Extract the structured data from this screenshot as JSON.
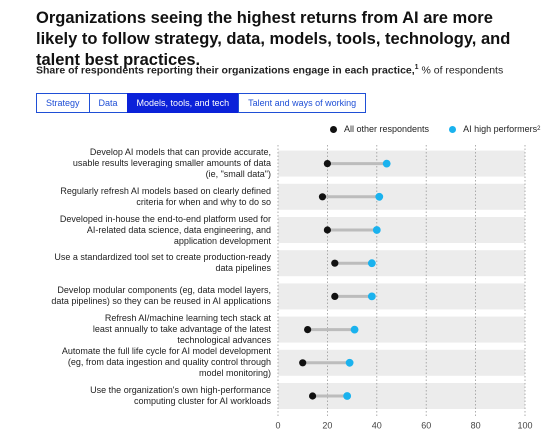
{
  "title": "Organizations seeing the highest returns from AI are more likely to follow strategy, data, models, tools, technology, and talent best practices.",
  "subtitle_bold": "Share of respondents reporting their organizations engage in each practice,",
  "subtitle_sup": "1",
  "subtitle_rest": " % of respondents",
  "tabs": [
    {
      "label": "Strategy",
      "active": false
    },
    {
      "label": "Data",
      "active": false
    },
    {
      "label": "Models, tools, and tech",
      "active": true
    },
    {
      "label": "Talent and ways of working",
      "active": false
    }
  ],
  "colors": {
    "other": "#111111",
    "high": "#1ab2ee",
    "connector": "#bcbcbc",
    "band": "#ececec"
  },
  "chart_data": {
    "type": "scatter",
    "xlim": [
      0,
      100
    ],
    "xticks": [
      "0",
      "20",
      "40",
      "60",
      "80",
      "100"
    ],
    "legend": {
      "other": "All other respondents",
      "high": "AI high performers",
      "high_sup": "2",
      "placement": "top-right"
    },
    "categories": [
      "Develop AI models that can provide accurate, usable results leveraging smaller amounts of data (ie, \"small data\")",
      "Regularly refresh AI models based on clearly defined criteria for when and why to do so",
      "Developed in-house the end-to-end platform used for AI-related data science, data engineering, and application development",
      "Use a standardized tool set to create production-ready data pipelines",
      "Develop modular components (eg, data model layers, data pipelines) so they can be reused in AI applications",
      "Refresh AI/machine learning tech stack at least annually to take advantage of the latest technological advances",
      "Automate the full life cycle for AI model development (eg, from data ingestion and quality control through model monitoring)",
      "Use the organization's own high-performance computing cluster for AI workloads"
    ],
    "label_lines": [
      [
        "Develop AI models that can provide accurate,",
        "usable results leveraging smaller amounts of data",
        "(ie, \"small data\")"
      ],
      [
        "Regularly refresh AI models based on clearly defined",
        "criteria for when and why to do so"
      ],
      [
        "Developed in-house the end-to-end platform used for",
        "AI-related data science, data engineering, and",
        "application development"
      ],
      [
        "Use a standardized tool set to create production-ready",
        "data pipelines"
      ],
      [
        "Develop modular components (eg, data model layers,",
        "data pipelines) so they can be reused in AI applications"
      ],
      [
        "Refresh AI/machine learning tech stack at",
        "least annually to take advantage of the latest",
        "technological advances"
      ],
      [
        "Automate the full life cycle for AI model development",
        "(eg, from data ingestion and quality control through",
        "model monitoring)"
      ],
      [
        "Use the organization's own high-performance",
        "computing cluster for AI workloads"
      ]
    ],
    "series": [
      {
        "name": "All other respondents",
        "values": [
          20,
          18,
          20,
          23,
          23,
          12,
          10,
          14
        ]
      },
      {
        "name": "AI high performers",
        "values": [
          44,
          41,
          40,
          38,
          38,
          31,
          29,
          28
        ]
      }
    ]
  }
}
